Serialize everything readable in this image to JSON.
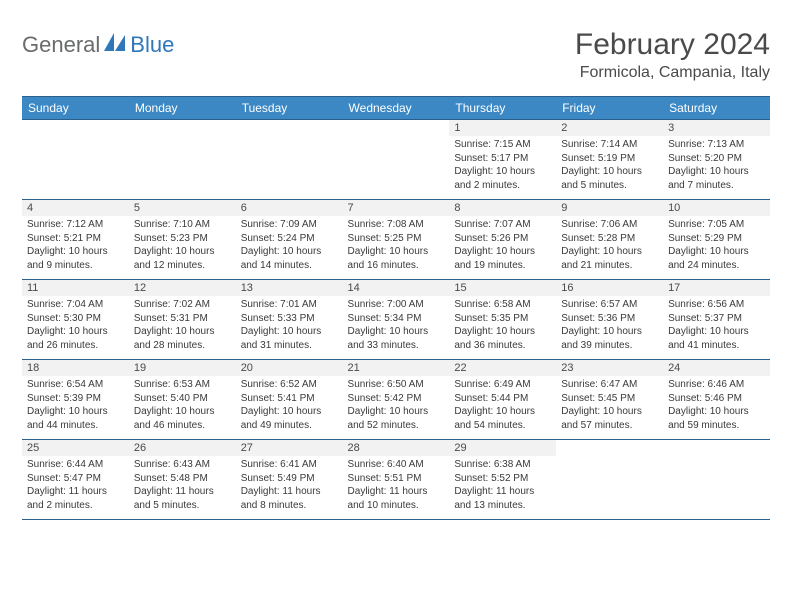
{
  "logo": {
    "word1": "General",
    "word2": "Blue"
  },
  "title": "February 2024",
  "location": "Formicola, Campania, Italy",
  "colors": {
    "header_bg": "#3b88c4",
    "header_text": "#ffffff",
    "border": "#2b5f8c",
    "day_head_bg": "#f2f2f2",
    "text": "#4a4a4a",
    "logo_gray": "#6a6b6c",
    "logo_blue": "#2e77b8"
  },
  "weekdays": [
    "Sunday",
    "Monday",
    "Tuesday",
    "Wednesday",
    "Thursday",
    "Friday",
    "Saturday"
  ],
  "weeks": [
    [
      null,
      null,
      null,
      null,
      {
        "n": "1",
        "sr": "Sunrise: 7:15 AM",
        "ss": "Sunset: 5:17 PM",
        "dl": "Daylight: 10 hours and 2 minutes."
      },
      {
        "n": "2",
        "sr": "Sunrise: 7:14 AM",
        "ss": "Sunset: 5:19 PM",
        "dl": "Daylight: 10 hours and 5 minutes."
      },
      {
        "n": "3",
        "sr": "Sunrise: 7:13 AM",
        "ss": "Sunset: 5:20 PM",
        "dl": "Daylight: 10 hours and 7 minutes."
      }
    ],
    [
      {
        "n": "4",
        "sr": "Sunrise: 7:12 AM",
        "ss": "Sunset: 5:21 PM",
        "dl": "Daylight: 10 hours and 9 minutes."
      },
      {
        "n": "5",
        "sr": "Sunrise: 7:10 AM",
        "ss": "Sunset: 5:23 PM",
        "dl": "Daylight: 10 hours and 12 minutes."
      },
      {
        "n": "6",
        "sr": "Sunrise: 7:09 AM",
        "ss": "Sunset: 5:24 PM",
        "dl": "Daylight: 10 hours and 14 minutes."
      },
      {
        "n": "7",
        "sr": "Sunrise: 7:08 AM",
        "ss": "Sunset: 5:25 PM",
        "dl": "Daylight: 10 hours and 16 minutes."
      },
      {
        "n": "8",
        "sr": "Sunrise: 7:07 AM",
        "ss": "Sunset: 5:26 PM",
        "dl": "Daylight: 10 hours and 19 minutes."
      },
      {
        "n": "9",
        "sr": "Sunrise: 7:06 AM",
        "ss": "Sunset: 5:28 PM",
        "dl": "Daylight: 10 hours and 21 minutes."
      },
      {
        "n": "10",
        "sr": "Sunrise: 7:05 AM",
        "ss": "Sunset: 5:29 PM",
        "dl": "Daylight: 10 hours and 24 minutes."
      }
    ],
    [
      {
        "n": "11",
        "sr": "Sunrise: 7:04 AM",
        "ss": "Sunset: 5:30 PM",
        "dl": "Daylight: 10 hours and 26 minutes."
      },
      {
        "n": "12",
        "sr": "Sunrise: 7:02 AM",
        "ss": "Sunset: 5:31 PM",
        "dl": "Daylight: 10 hours and 28 minutes."
      },
      {
        "n": "13",
        "sr": "Sunrise: 7:01 AM",
        "ss": "Sunset: 5:33 PM",
        "dl": "Daylight: 10 hours and 31 minutes."
      },
      {
        "n": "14",
        "sr": "Sunrise: 7:00 AM",
        "ss": "Sunset: 5:34 PM",
        "dl": "Daylight: 10 hours and 33 minutes."
      },
      {
        "n": "15",
        "sr": "Sunrise: 6:58 AM",
        "ss": "Sunset: 5:35 PM",
        "dl": "Daylight: 10 hours and 36 minutes."
      },
      {
        "n": "16",
        "sr": "Sunrise: 6:57 AM",
        "ss": "Sunset: 5:36 PM",
        "dl": "Daylight: 10 hours and 39 minutes."
      },
      {
        "n": "17",
        "sr": "Sunrise: 6:56 AM",
        "ss": "Sunset: 5:37 PM",
        "dl": "Daylight: 10 hours and 41 minutes."
      }
    ],
    [
      {
        "n": "18",
        "sr": "Sunrise: 6:54 AM",
        "ss": "Sunset: 5:39 PM",
        "dl": "Daylight: 10 hours and 44 minutes."
      },
      {
        "n": "19",
        "sr": "Sunrise: 6:53 AM",
        "ss": "Sunset: 5:40 PM",
        "dl": "Daylight: 10 hours and 46 minutes."
      },
      {
        "n": "20",
        "sr": "Sunrise: 6:52 AM",
        "ss": "Sunset: 5:41 PM",
        "dl": "Daylight: 10 hours and 49 minutes."
      },
      {
        "n": "21",
        "sr": "Sunrise: 6:50 AM",
        "ss": "Sunset: 5:42 PM",
        "dl": "Daylight: 10 hours and 52 minutes."
      },
      {
        "n": "22",
        "sr": "Sunrise: 6:49 AM",
        "ss": "Sunset: 5:44 PM",
        "dl": "Daylight: 10 hours and 54 minutes."
      },
      {
        "n": "23",
        "sr": "Sunrise: 6:47 AM",
        "ss": "Sunset: 5:45 PM",
        "dl": "Daylight: 10 hours and 57 minutes."
      },
      {
        "n": "24",
        "sr": "Sunrise: 6:46 AM",
        "ss": "Sunset: 5:46 PM",
        "dl": "Daylight: 10 hours and 59 minutes."
      }
    ],
    [
      {
        "n": "25",
        "sr": "Sunrise: 6:44 AM",
        "ss": "Sunset: 5:47 PM",
        "dl": "Daylight: 11 hours and 2 minutes."
      },
      {
        "n": "26",
        "sr": "Sunrise: 6:43 AM",
        "ss": "Sunset: 5:48 PM",
        "dl": "Daylight: 11 hours and 5 minutes."
      },
      {
        "n": "27",
        "sr": "Sunrise: 6:41 AM",
        "ss": "Sunset: 5:49 PM",
        "dl": "Daylight: 11 hours and 8 minutes."
      },
      {
        "n": "28",
        "sr": "Sunrise: 6:40 AM",
        "ss": "Sunset: 5:51 PM",
        "dl": "Daylight: 11 hours and 10 minutes."
      },
      {
        "n": "29",
        "sr": "Sunrise: 6:38 AM",
        "ss": "Sunset: 5:52 PM",
        "dl": "Daylight: 11 hours and 13 minutes."
      },
      null,
      null
    ]
  ]
}
